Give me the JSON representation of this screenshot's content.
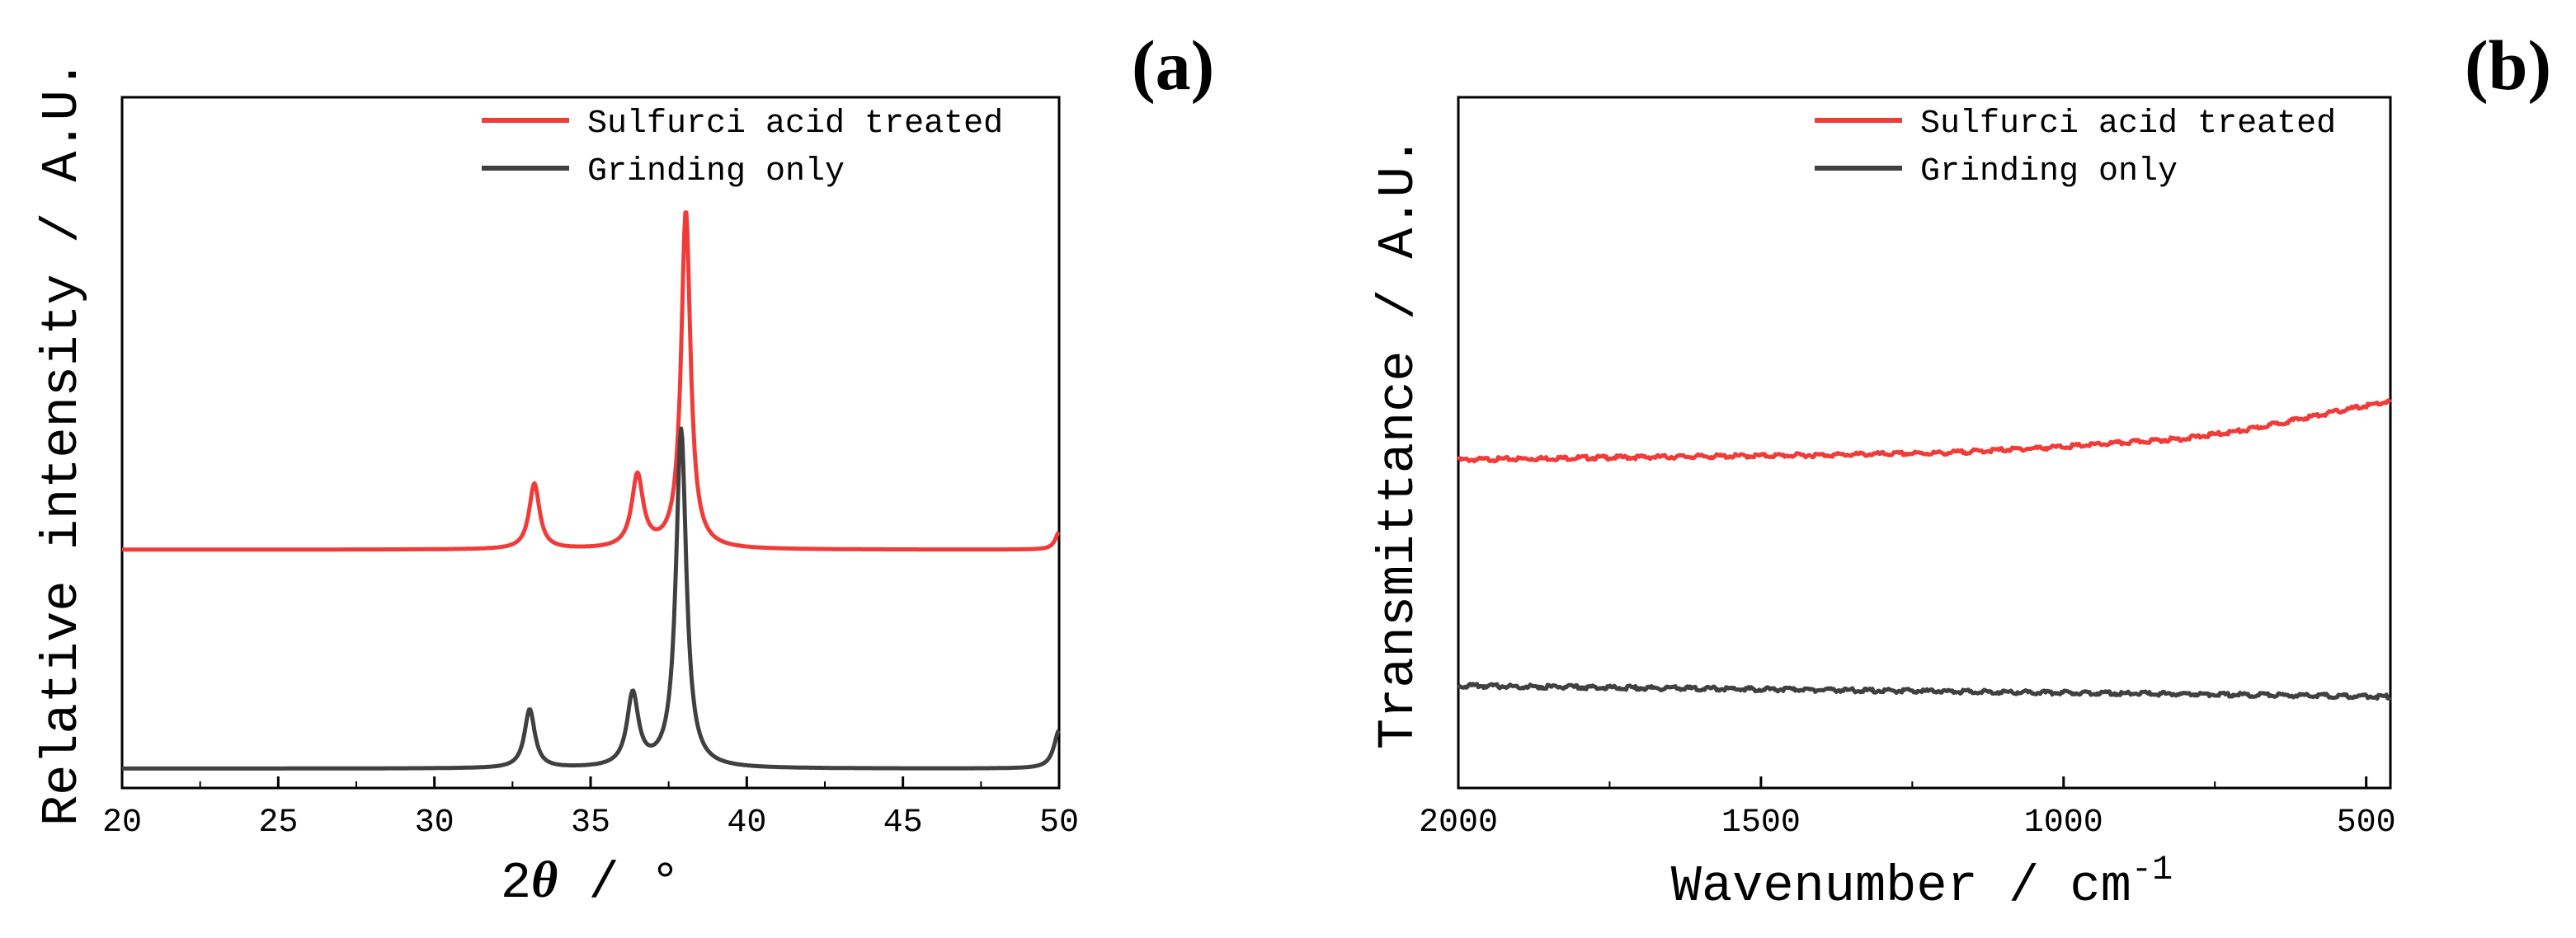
{
  "colors": {
    "red": "#f03b38",
    "dark": "#404040",
    "axis": "#000000"
  },
  "panels": [
    {
      "tag": "(a)"
    },
    {
      "tag": "(b)"
    }
  ],
  "chart_data": [
    {
      "type": "line",
      "panel": "(a)",
      "title": "",
      "xlabel_main": "2",
      "xlabel_symbol": "θ",
      "xlabel_rest": " / °",
      "ylabel": "Relative intensity / A.U.",
      "xlim": [
        20,
        50
      ],
      "ylim": [
        0,
        1
      ],
      "xticks": [
        20,
        25,
        30,
        35,
        40,
        45,
        50
      ],
      "xtick_labels": [
        "20",
        "25",
        "30",
        "35",
        "40",
        "45",
        "50"
      ],
      "legend_position": "top-right",
      "series": [
        {
          "name": "Sulfurci acid treated",
          "color": "#f03b38",
          "baseline": 0.345,
          "peaks": [
            {
              "x": 33.2,
              "height": 0.095,
              "width": 0.2
            },
            {
              "x": 36.5,
              "height": 0.105,
              "width": 0.22
            },
            {
              "x": 38.05,
              "height": 0.49,
              "width": 0.18
            },
            {
              "x": 50.0,
              "height": 0.025,
              "width": 0.15
            }
          ]
        },
        {
          "name": "Grinding only",
          "color": "#404040",
          "baseline": 0.028,
          "peaks": [
            {
              "x": 33.05,
              "height": 0.085,
              "width": 0.2
            },
            {
              "x": 36.35,
              "height": 0.105,
              "width": 0.22
            },
            {
              "x": 37.9,
              "height": 0.49,
              "width": 0.2
            },
            {
              "x": 50.0,
              "height": 0.055,
              "width": 0.2
            }
          ]
        }
      ]
    },
    {
      "type": "line",
      "panel": "(b)",
      "title": "",
      "xlabel_main": "Wavenumber / cm",
      "xlabel_sup": "-1",
      "ylabel": "Transmittance / A.U.",
      "xlim": [
        2000,
        460
      ],
      "ylim": [
        0,
        1
      ],
      "xticks": [
        2000,
        1500,
        1000,
        500
      ],
      "xtick_labels": [
        "2000",
        "1500",
        "1000",
        "500"
      ],
      "legend_position": "top-right",
      "series": [
        {
          "name": "Sulfurci acid treated",
          "color": "#f03b38",
          "x": [
            2000,
            1800,
            1600,
            1400,
            1200,
            1000,
            800,
            700,
            600,
            520,
            460
          ],
          "y": [
            0.475,
            0.478,
            0.48,
            0.482,
            0.485,
            0.494,
            0.506,
            0.518,
            0.536,
            0.55,
            0.56
          ]
        },
        {
          "name": "Grinding only",
          "color": "#404040",
          "x": [
            2000,
            1800,
            1600,
            1400,
            1200,
            1000,
            800,
            600,
            460
          ],
          "y": [
            0.148,
            0.146,
            0.144,
            0.142,
            0.14,
            0.138,
            0.136,
            0.134,
            0.132
          ]
        }
      ]
    }
  ]
}
